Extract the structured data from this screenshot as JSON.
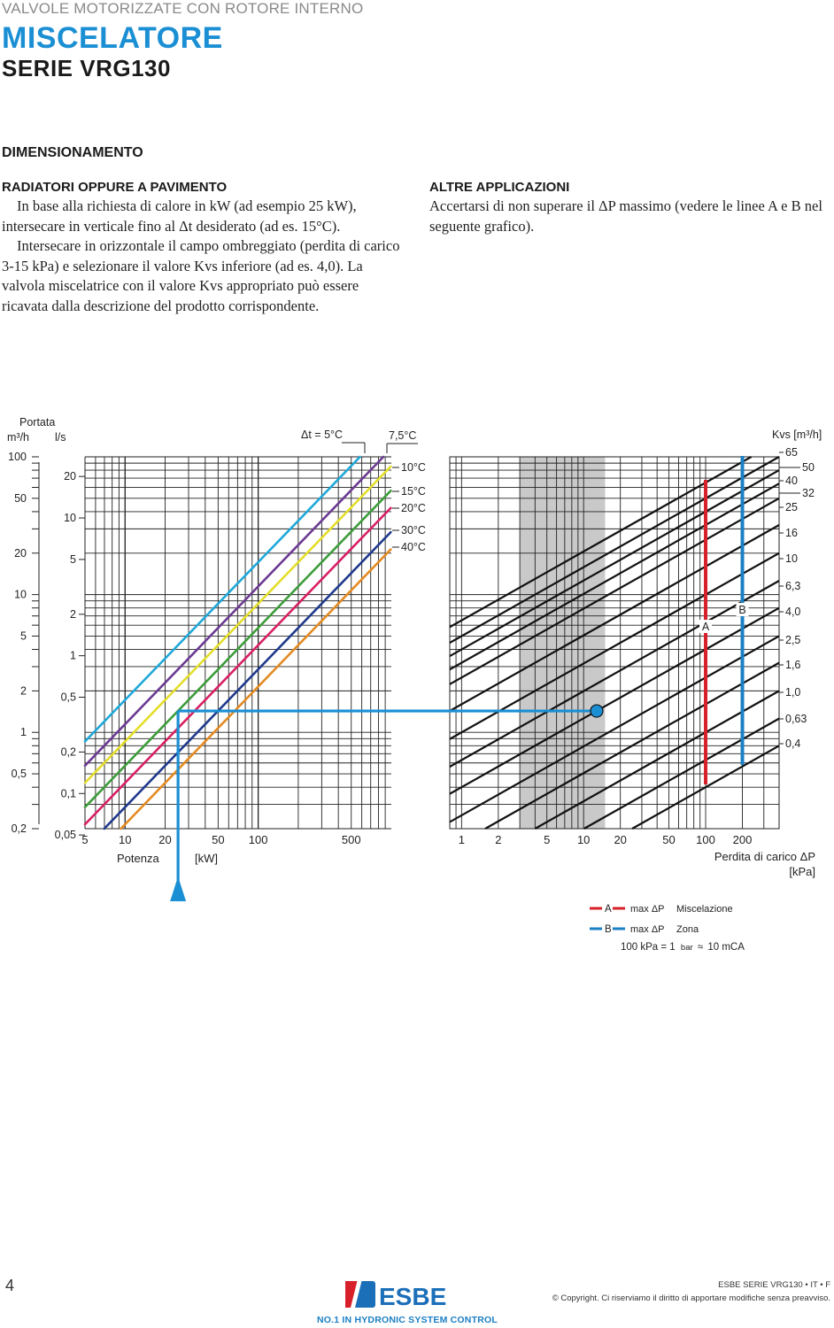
{
  "header": {
    "kicker": "VALVOLE MOTORIZZATE CON ROTORE INTERNO",
    "title": "MISCELATORE",
    "subtitle": "SERIE VRG130"
  },
  "section_title": "DIMENSIONAMENTO",
  "left_col": {
    "heading": "RADIATORI OPPURE A PAVIMENTO",
    "paragraphs": [
      "In base alla richiesta di calore in kW (ad esempio 25 kW), intersecare in verticale fino al Δt desiderato (ad es. 15°C).",
      "Intersecare in orizzontale il campo ombreggiato (perdita di carico 3-15 kPa) e selezionare il valore Kvs inferiore (ad es. 4,0). La valvola miscelatrice con il valore Kvs appropriato può essere ricavata dalla descrizione del prodotto corrispondente."
    ]
  },
  "right_col": {
    "heading": "ALTRE APPLICAZIONI",
    "paragraphs": [
      "Accertarsi di non superare il ΔP massimo (vedere le linee A e B nel seguente grafico)."
    ]
  },
  "chart_data": [
    {
      "type": "line",
      "x_scale": "log",
      "y_scale": "log",
      "xlim": [
        5,
        1000
      ],
      "ylim": [
        0.2,
        100
      ],
      "title_lines": [
        "Portata"
      ],
      "y_units": [
        "m³/h",
        "l/s"
      ],
      "xlabel": "Potenza",
      "xunit": "[kW]",
      "x_ticks": [
        "5",
        "10",
        "20",
        "50",
        "100",
        "500"
      ],
      "y_ticks_m3h": [
        "100",
        "50",
        "20",
        "10",
        "5",
        "2",
        "1",
        "0,5",
        "0,2"
      ],
      "y_ticks_ls": [
        "20",
        "10",
        "5",
        "2",
        "1",
        "0,5",
        "0,2",
        "0,1",
        "0,05"
      ],
      "dt_label": "Δt = 5°C",
      "dt_label_2": "7,5°C",
      "series": [
        {
          "name": "5°C",
          "dt_k": 5,
          "color": "#1fa8d8"
        },
        {
          "name": "7,5°C",
          "dt_k": 7.5,
          "color": "#6b3a92"
        },
        {
          "name": "10°C",
          "dt_k": 10,
          "color": "#e3de2a"
        },
        {
          "name": "15°C",
          "dt_k": 15,
          "color": "#3d9c3a"
        },
        {
          "name": "20°C",
          "dt_k": 20,
          "color": "#d81f64"
        },
        {
          "name": "30°C",
          "dt_k": 30,
          "color": "#1f3a8c"
        },
        {
          "name": "40°C",
          "dt_k": 40,
          "color": "#e38a22"
        }
      ],
      "example": {
        "power_kw": 25,
        "dt_k": 15,
        "flow_m3h": 1.43,
        "color": "#1b8fd4"
      }
    },
    {
      "type": "line",
      "x_scale": "log",
      "y_scale": "log",
      "xlim": [
        0.8,
        400
      ],
      "ylim": [
        0.2,
        100
      ],
      "xlabel": "Perdita di carico ΔP",
      "xunit": "[kPa]",
      "ylabel": "Kvs [m³/h]",
      "x_ticks": [
        "1",
        "2",
        "5",
        "10",
        "20",
        "50",
        "100",
        "200"
      ],
      "shaded_range_kpa": [
        3,
        15
      ],
      "kvs_values": [
        0.4,
        0.63,
        1.0,
        1.6,
        2.5,
        4.0,
        6.3,
        10,
        16,
        25,
        32,
        40,
        50,
        65
      ],
      "kvs_labels": [
        "0,4",
        "0,63",
        "1,0",
        "1,6",
        "2,5",
        "4,0",
        "6,3",
        "10",
        "16",
        "25",
        "32",
        "40",
        "50",
        "65"
      ],
      "limits": [
        {
          "name": "A",
          "dp_kpa": 100,
          "color": "#d8202a"
        },
        {
          "name": "B",
          "dp_kpa": 200,
          "color": "#1b7fc4"
        }
      ],
      "example_point": {
        "dp_kpa": 12.8,
        "kvs": 4.0
      }
    }
  ],
  "legend": {
    "a_letter": "A",
    "a_text": "max ΔP",
    "a_desc": "Miscelazione",
    "b_letter": "B",
    "b_text": "max ΔP",
    "b_desc": "Zona",
    "note_a": "100 kPa = 1",
    "note_b": "bar",
    "note_c": "≈",
    "note_d": "10 mCA",
    "colors": {
      "a": "#d8202a",
      "b": "#1b7fc4"
    }
  },
  "footer": {
    "page_number": "4",
    "brand": "ESBE",
    "tagline": "NO.1 IN HYDRONIC SYSTEM CONTROL",
    "series_line": "ESBE SERIE VRG130 • IT • F",
    "copyright": "© Copyright. Ci riserviamo il diritto di apportare modifiche senza preavviso."
  }
}
